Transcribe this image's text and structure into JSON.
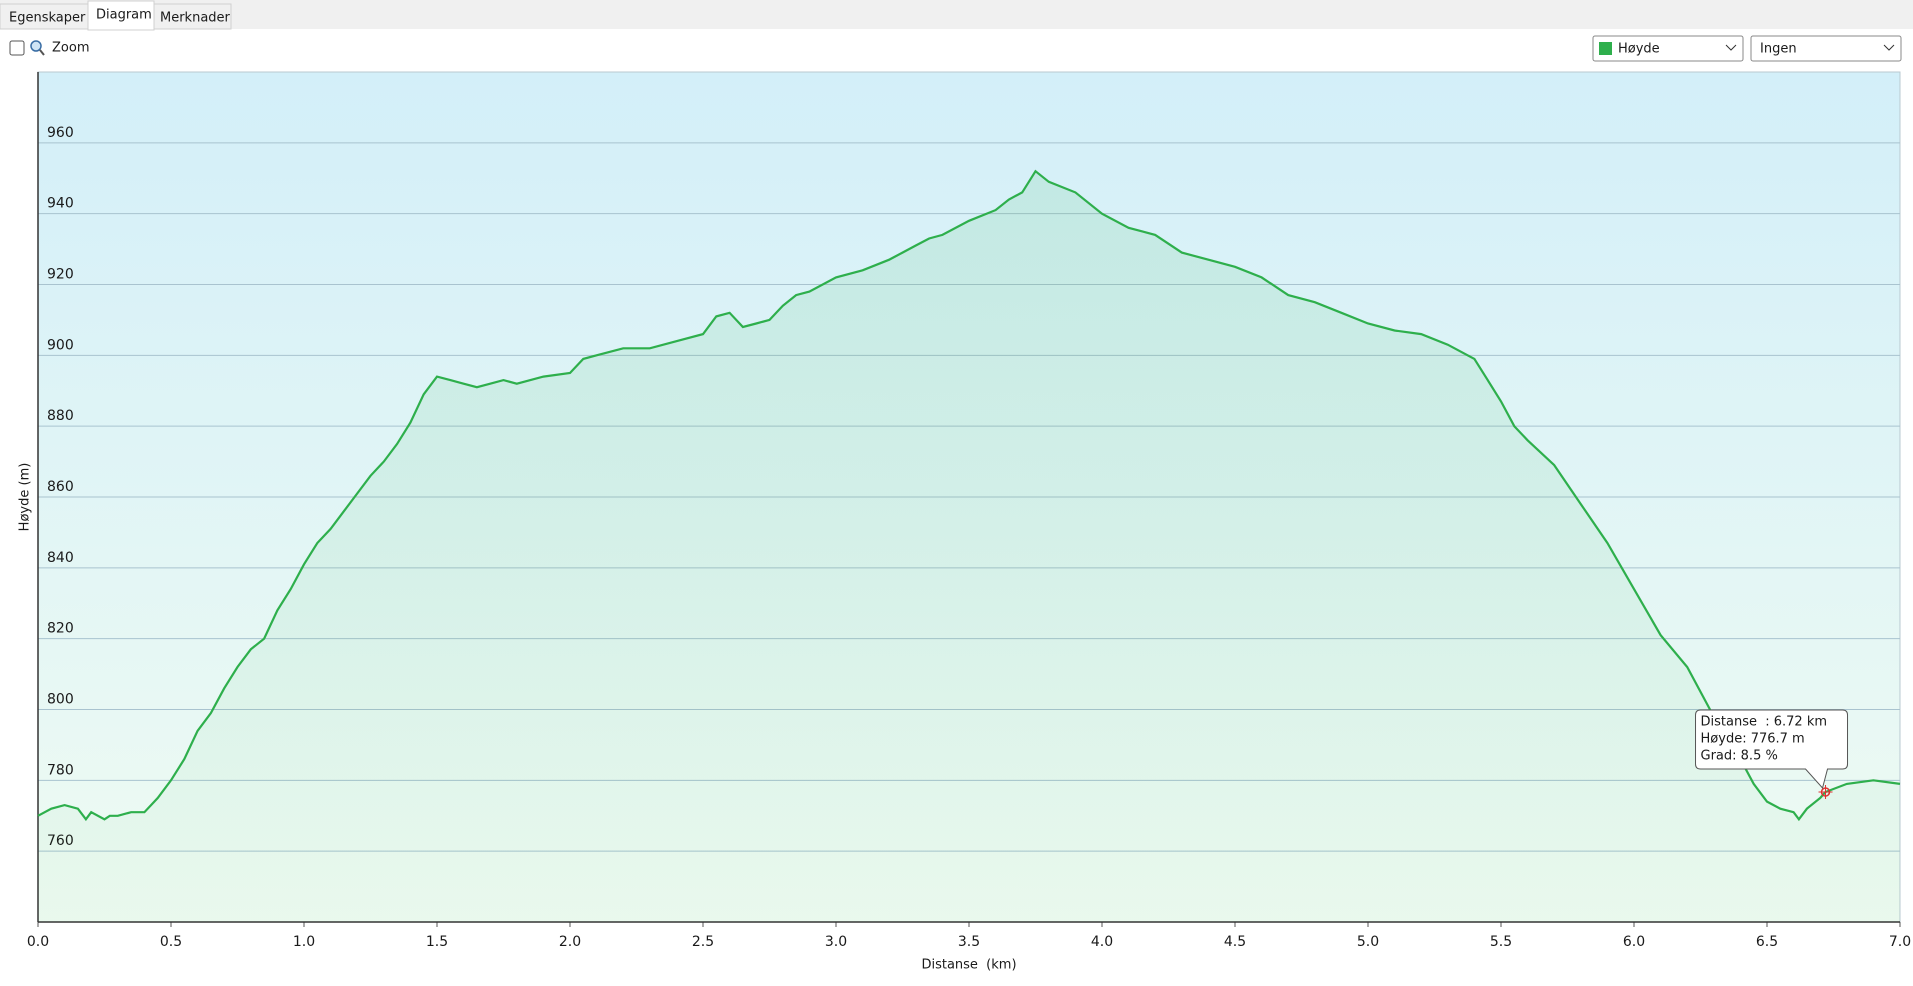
{
  "ui": {
    "tabs": [
      "Egenskaper",
      "Diagram",
      "Merknader"
    ],
    "zoom": "Zoom",
    "secondary_dropdown": "Ingen"
  },
  "chart_data": {
    "type": "area",
    "xlabel": "Distanse  (km)",
    "ylabel": "Høyde (m)",
    "x": [
      0.0,
      0.05,
      0.1,
      0.15,
      0.18,
      0.2,
      0.25,
      0.27,
      0.3,
      0.35,
      0.4,
      0.45,
      0.5,
      0.55,
      0.6,
      0.65,
      0.7,
      0.75,
      0.8,
      0.85,
      0.9,
      0.95,
      1.0,
      1.05,
      1.1,
      1.15,
      1.2,
      1.25,
      1.3,
      1.35,
      1.4,
      1.45,
      1.5,
      1.55,
      1.6,
      1.65,
      1.7,
      1.75,
      1.8,
      1.9,
      2.0,
      2.05,
      2.1,
      2.2,
      2.3,
      2.4,
      2.5,
      2.55,
      2.6,
      2.65,
      2.7,
      2.75,
      2.8,
      2.85,
      2.9,
      3.0,
      3.1,
      3.2,
      3.25,
      3.3,
      3.35,
      3.4,
      3.5,
      3.6,
      3.65,
      3.7,
      3.75,
      3.8,
      3.9,
      4.0,
      4.1,
      4.2,
      4.3,
      4.4,
      4.5,
      4.6,
      4.7,
      4.8,
      4.9,
      5.0,
      5.1,
      5.2,
      5.3,
      5.4,
      5.45,
      5.5,
      5.55,
      5.6,
      5.7,
      5.8,
      5.9,
      6.0,
      6.1,
      6.2,
      6.3,
      6.4,
      6.45,
      6.5,
      6.55,
      6.6,
      6.62,
      6.65,
      6.7,
      6.72,
      6.8,
      6.9,
      7.0
    ],
    "series": [
      {
        "name": "Høyde",
        "color": "#2eaf4c",
        "values": [
          770,
          772,
          773,
          772,
          769,
          771,
          769,
          770,
          770,
          771,
          771,
          775,
          780,
          786,
          794,
          799,
          806,
          812,
          817,
          820,
          828,
          834,
          841,
          847,
          851,
          856,
          861,
          866,
          870,
          875,
          881,
          889,
          894,
          893,
          892,
          891,
          892,
          893,
          892,
          894,
          895,
          899,
          900,
          902,
          902,
          904,
          906,
          911,
          912,
          908,
          909,
          910,
          914,
          917,
          918,
          922,
          924,
          927,
          929,
          931,
          933,
          934,
          938,
          941,
          944,
          946,
          952,
          949,
          946,
          940,
          936,
          934,
          929,
          927,
          925,
          922,
          917,
          915,
          912,
          909,
          907,
          906,
          903,
          899,
          893,
          887,
          880,
          876,
          869,
          858,
          847,
          834,
          821,
          812,
          798,
          786,
          779,
          774,
          772,
          771,
          769,
          772,
          775,
          776.7,
          779,
          780,
          779
        ]
      }
    ],
    "xlim": [
      0,
      7
    ],
    "xticks": [
      {
        "value": 0,
        "label": "0.0"
      },
      0.5,
      {
        "value": 1,
        "label": "1.0"
      },
      1.5,
      {
        "value": 2,
        "label": "2.0"
      },
      2.5,
      {
        "value": 3,
        "label": "3.0"
      },
      3.5,
      {
        "value": 4,
        "label": "4.0"
      },
      4.5,
      {
        "value": 5,
        "label": "5.0"
      },
      5.5,
      {
        "value": 6,
        "label": "6.0"
      },
      6.5,
      {
        "value": 7,
        "label": "7.0"
      }
    ],
    "ylim": [
      740,
      980
    ],
    "yticks": [
      760,
      780,
      800,
      820,
      840,
      860,
      880,
      900,
      920,
      940,
      960
    ],
    "grid": true,
    "marker": {
      "x": 6.72,
      "y": 776.7
    },
    "tooltip": [
      "Distanse  : 6.72 km",
      "Høyde: 776.7 m",
      "Grad: 8.5 %"
    ]
  }
}
